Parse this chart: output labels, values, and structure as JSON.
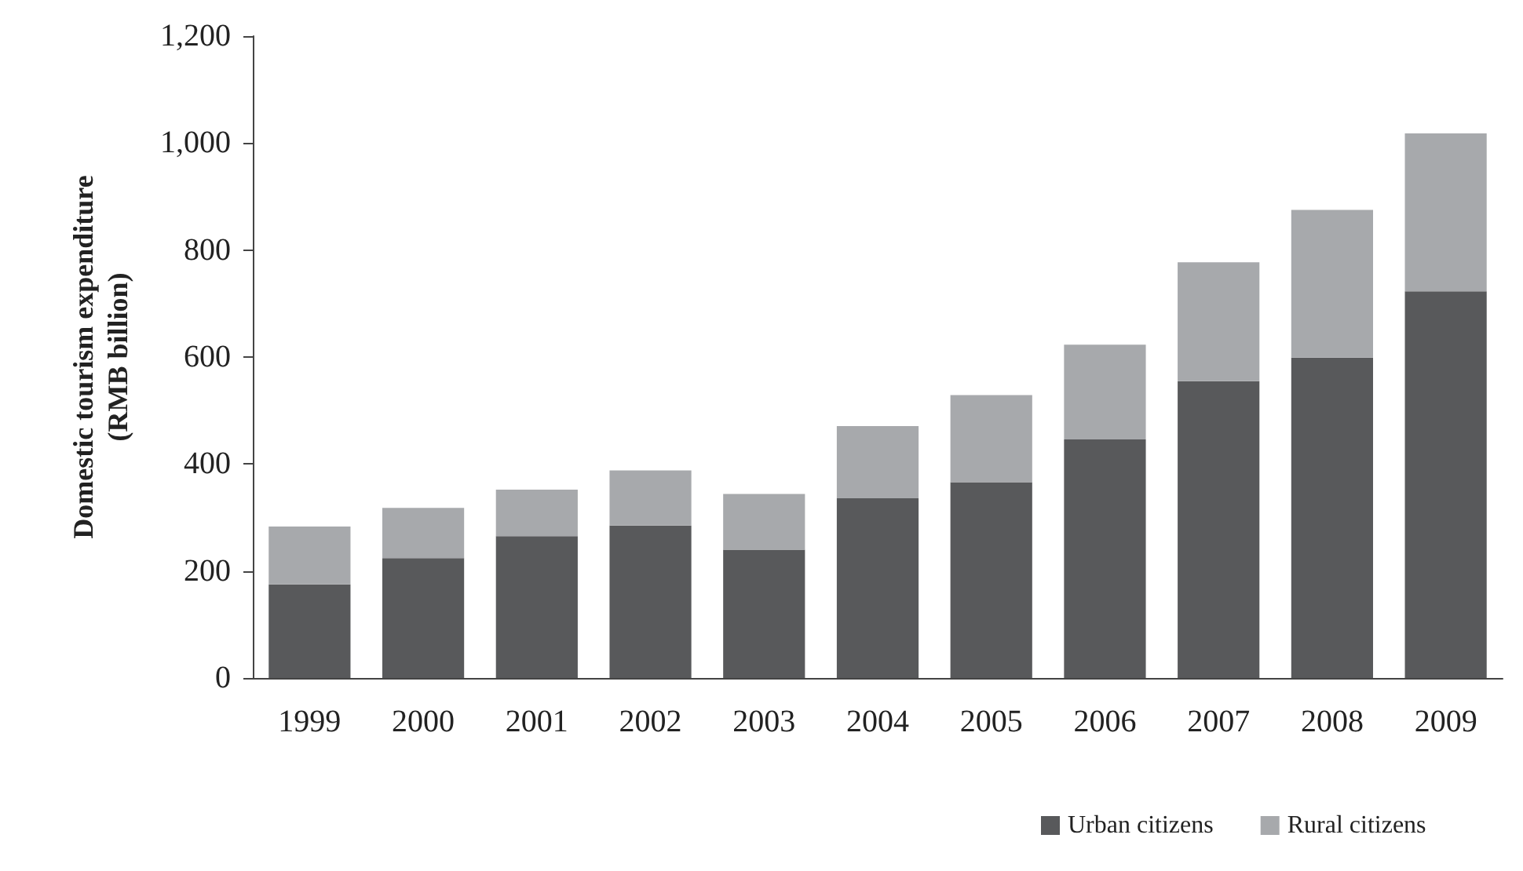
{
  "chart_data": {
    "type": "bar",
    "stacked": true,
    "ylabel": "Domestic tourism expenditure\n(RMB billion)",
    "categories": [
      "1999",
      "2000",
      "2001",
      "2002",
      "2003",
      "2004",
      "2005",
      "2006",
      "2007",
      "2008",
      "2009"
    ],
    "series": [
      {
        "name": "Urban citizens",
        "color": "#58595b",
        "values": [
          175,
          224,
          265,
          285,
          240,
          336,
          366,
          446,
          555,
          599,
          723
        ]
      },
      {
        "name": "Rural citizens",
        "color": "#a7a9ac",
        "values": [
          108,
          94,
          87,
          103,
          104,
          135,
          163,
          177,
          222,
          276,
          295
        ]
      }
    ],
    "ylim": [
      0,
      1200
    ],
    "yticks": [
      0,
      {
        "value": 200,
        "label": "200"
      },
      {
        "value": 400,
        "label": "400"
      },
      {
        "value": 600,
        "label": "600"
      },
      {
        "value": 800,
        "label": "800"
      },
      {
        "value": 1000,
        "label": "1,000"
      },
      {
        "value": 1200,
        "label": "1,200"
      }
    ],
    "grid": false,
    "legend": "bottom"
  }
}
